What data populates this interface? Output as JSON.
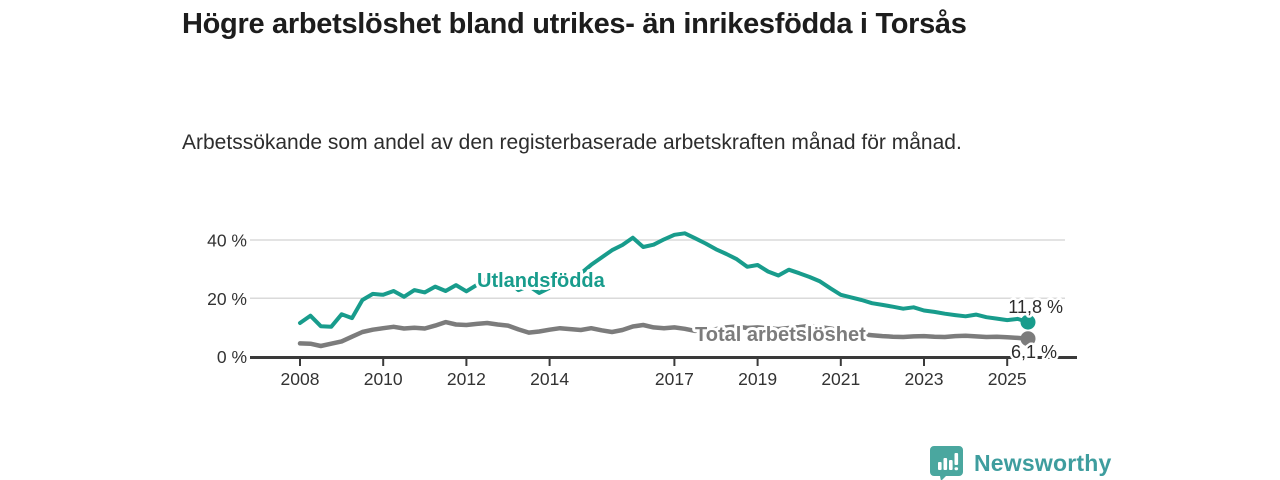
{
  "title": "Högre arbetslöshet bland utrikes- än inrikesfödda i Torsås",
  "subtitle": "Arbetssökande som andel av den registerbaserade arbetskraften månad för månad.",
  "branding": {
    "name": "Newsworthy",
    "icon": "bar-chart-speech-bubble-icon",
    "text_color": "#3e9d9e",
    "icon_color": "#4aa79f"
  },
  "colors": {
    "foreign_born_line": "#189c8c",
    "total_line": "#7c7c7c",
    "gridline": "#dadada",
    "axis": "#3a3a3a",
    "text": "#333333"
  },
  "chart_data": {
    "type": "line",
    "title": "Högre arbetslöshet bland utrikes- än inrikesfödda i Torsås",
    "subtitle": "Arbetssökande som andel av den registerbaserade arbetskraften månad för månad.",
    "xlabel": "",
    "ylabel": "",
    "unit": "%",
    "grid": "horizontal",
    "legend": "inline-labels",
    "x_ticks": [
      2008,
      2010,
      2012,
      2014,
      2017,
      2019,
      2021,
      2023,
      2025
    ],
    "y_ticks": [
      {
        "value": 0,
        "label": "0 %"
      },
      {
        "value": 20,
        "label": "20 %"
      },
      {
        "value": 40,
        "label": "40 %"
      }
    ],
    "ylim": [
      0,
      45
    ],
    "x_start": 2008.0,
    "x_step": 0.25,
    "series": [
      {
        "name": "Utlandsfödda",
        "color": "#189c8c",
        "end_label": "11,8 %",
        "end_value": 11.8,
        "values": [
          11.5,
          14.0,
          10.4,
          10.2,
          14.5,
          13.2,
          19.4,
          21.5,
          21.2,
          22.5,
          20.5,
          22.8,
          22.0,
          24.0,
          22.5,
          24.5,
          22.4,
          24.6,
          26.8,
          25.4,
          26.0,
          22.8,
          24.2,
          21.8,
          23.6,
          24.8,
          26.2,
          28.5,
          31.5,
          34.0,
          36.5,
          38.3,
          40.8,
          37.6,
          38.4,
          40.2,
          41.8,
          42.3,
          40.6,
          38.8,
          36.8,
          35.2,
          33.4,
          30.8,
          31.4,
          29.2,
          27.8,
          29.8,
          28.6,
          27.3,
          25.8,
          23.4,
          21.2,
          20.3,
          19.4,
          18.3,
          17.7,
          17.1,
          16.4,
          16.9,
          15.8,
          15.3,
          14.7,
          14.2,
          13.8,
          14.4,
          13.5,
          13.0,
          12.5,
          12.9,
          11.8
        ]
      },
      {
        "name": "Total arbetslöshet",
        "color": "#7c7c7c",
        "end_label": "6,1 %",
        "end_value": 6.1,
        "values": [
          4.5,
          4.4,
          3.6,
          4.4,
          5.2,
          6.8,
          8.4,
          9.2,
          9.7,
          10.2,
          9.6,
          9.9,
          9.6,
          10.6,
          11.8,
          11.0,
          10.8,
          11.2,
          11.5,
          11.0,
          10.6,
          9.3,
          8.2,
          8.6,
          9.2,
          9.7,
          9.4,
          9.1,
          9.7,
          9.0,
          8.4,
          9.1,
          10.3,
          10.8,
          10.0,
          9.7,
          10.0,
          9.5,
          8.8,
          9.1,
          9.4,
          10.0,
          10.3,
          9.8,
          10.0,
          9.7,
          9.4,
          9.8,
          10.1,
          10.5,
          10.1,
          9.6,
          8.9,
          8.3,
          7.7,
          7.3,
          7.0,
          6.8,
          6.7,
          6.9,
          7.0,
          6.8,
          6.7,
          7.0,
          7.1,
          6.9,
          6.7,
          6.8,
          6.6,
          6.4,
          6.1
        ]
      }
    ]
  }
}
